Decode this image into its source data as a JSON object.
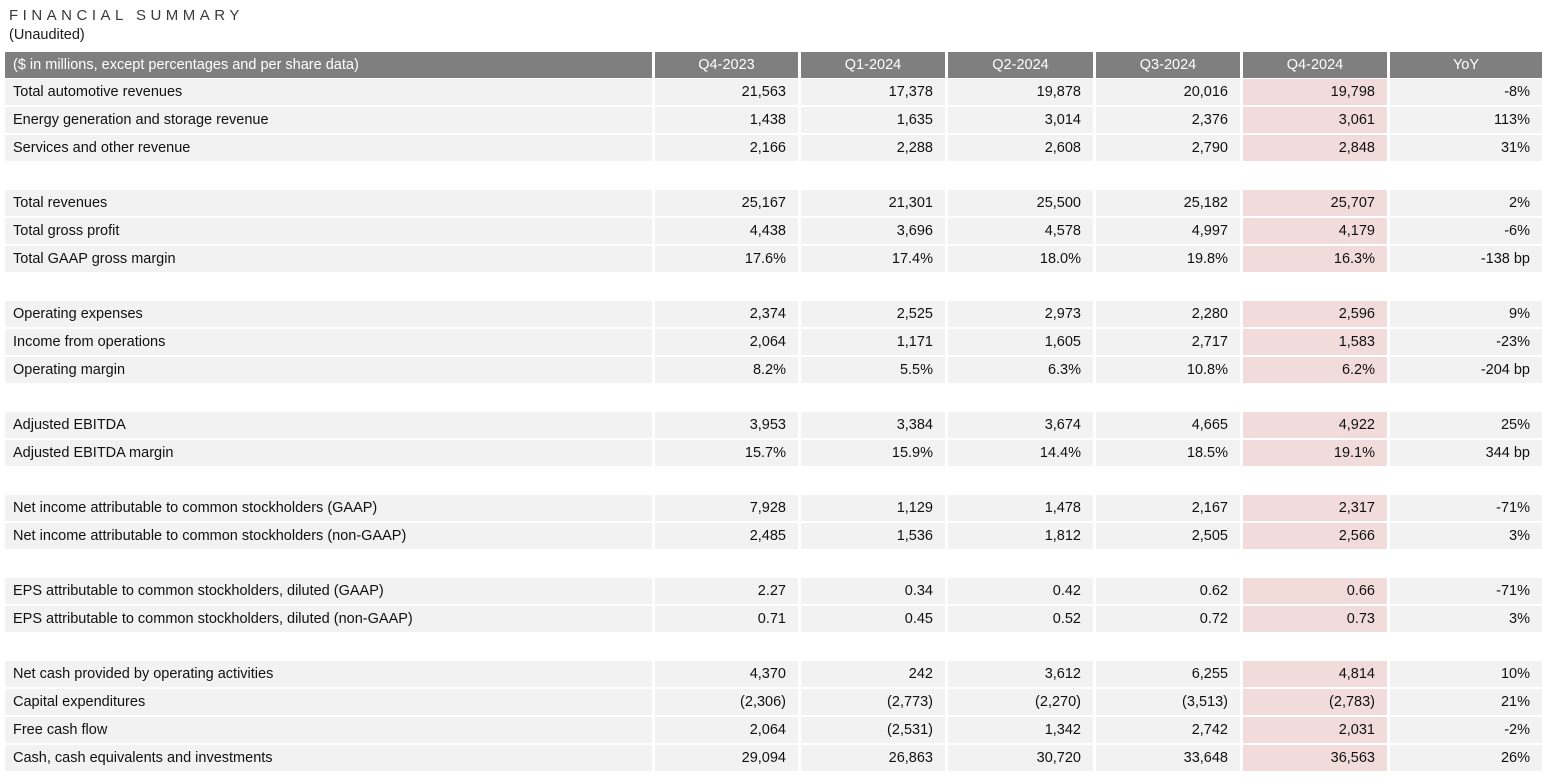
{
  "header": {
    "title": "FINANCIAL SUMMARY",
    "subtitle": "(Unaudited)"
  },
  "table": {
    "label_header": "($ in millions, except percentages and per share data)",
    "columns": [
      "Q4-2023",
      "Q1-2024",
      "Q2-2024",
      "Q3-2024",
      "Q4-2024",
      "YoY"
    ],
    "highlight_column": "Q4-2024",
    "colors": {
      "header_bg": "#7f7f7f",
      "header_text": "#ffffff",
      "row_bg": "#f2f2f2",
      "highlight_bg": "#f2dcdb"
    },
    "groups": [
      {
        "rows": [
          {
            "label": "Total automotive revenues",
            "values": [
              "21,563",
              "17,378",
              "19,878",
              "20,016",
              "19,798",
              "-8%"
            ]
          },
          {
            "label": "Energy generation and storage revenue",
            "values": [
              "1,438",
              "1,635",
              "3,014",
              "2,376",
              "3,061",
              "113%"
            ]
          },
          {
            "label": "Services and other revenue",
            "values": [
              "2,166",
              "2,288",
              "2,608",
              "2,790",
              "2,848",
              "31%"
            ]
          }
        ]
      },
      {
        "rows": [
          {
            "label": "Total revenues",
            "values": [
              "25,167",
              "21,301",
              "25,500",
              "25,182",
              "25,707",
              "2%"
            ]
          },
          {
            "label": "Total gross profit",
            "values": [
              "4,438",
              "3,696",
              "4,578",
              "4,997",
              "4,179",
              "-6%"
            ]
          },
          {
            "label": "Total GAAP gross margin",
            "values": [
              "17.6%",
              "17.4%",
              "18.0%",
              "19.8%",
              "16.3%",
              "-138 bp"
            ]
          }
        ]
      },
      {
        "rows": [
          {
            "label": "Operating expenses",
            "values": [
              "2,374",
              "2,525",
              "2,973",
              "2,280",
              "2,596",
              "9%"
            ]
          },
          {
            "label": "Income from operations",
            "values": [
              "2,064",
              "1,171",
              "1,605",
              "2,717",
              "1,583",
              "-23%"
            ]
          },
          {
            "label": "Operating margin",
            "values": [
              "8.2%",
              "5.5%",
              "6.3%",
              "10.8%",
              "6.2%",
              "-204 bp"
            ]
          }
        ]
      },
      {
        "rows": [
          {
            "label": "Adjusted EBITDA",
            "values": [
              "3,953",
              "3,384",
              "3,674",
              "4,665",
              "4,922",
              "25%"
            ]
          },
          {
            "label": "Adjusted EBITDA margin",
            "values": [
              "15.7%",
              "15.9%",
              "14.4%",
              "18.5%",
              "19.1%",
              "344 bp"
            ]
          }
        ]
      },
      {
        "rows": [
          {
            "label": "Net income attributable to common stockholders (GAAP)",
            "values": [
              "7,928",
              "1,129",
              "1,478",
              "2,167",
              "2,317",
              "-71%"
            ]
          },
          {
            "label": "Net income attributable to common stockholders (non-GAAP)",
            "values": [
              "2,485",
              "1,536",
              "1,812",
              "2,505",
              "2,566",
              "3%"
            ]
          }
        ]
      },
      {
        "rows": [
          {
            "label": "EPS attributable to common stockholders, diluted (GAAP)",
            "values": [
              "2.27",
              "0.34",
              "0.42",
              "0.62",
              "0.66",
              "-71%"
            ]
          },
          {
            "label": "EPS attributable to common stockholders, diluted (non-GAAP)",
            "values": [
              "0.71",
              "0.45",
              "0.52",
              "0.72",
              "0.73",
              "3%"
            ]
          }
        ]
      },
      {
        "rows": [
          {
            "label": "Net cash provided by operating activities",
            "values": [
              "4,370",
              "242",
              "3,612",
              "6,255",
              "4,814",
              "10%"
            ]
          },
          {
            "label": "Capital expenditures",
            "values": [
              "(2,306)",
              "(2,773)",
              "(2,270)",
              "(3,513)",
              "(2,783)",
              "21%"
            ]
          },
          {
            "label": "Free cash flow",
            "values": [
              "2,064",
              "(2,531)",
              "1,342",
              "2,742",
              "2,031",
              "-2%"
            ]
          },
          {
            "label": "Cash, cash equivalents and investments",
            "values": [
              "29,094",
              "26,863",
              "30,720",
              "33,648",
              "36,563",
              "26%"
            ]
          }
        ]
      }
    ]
  }
}
